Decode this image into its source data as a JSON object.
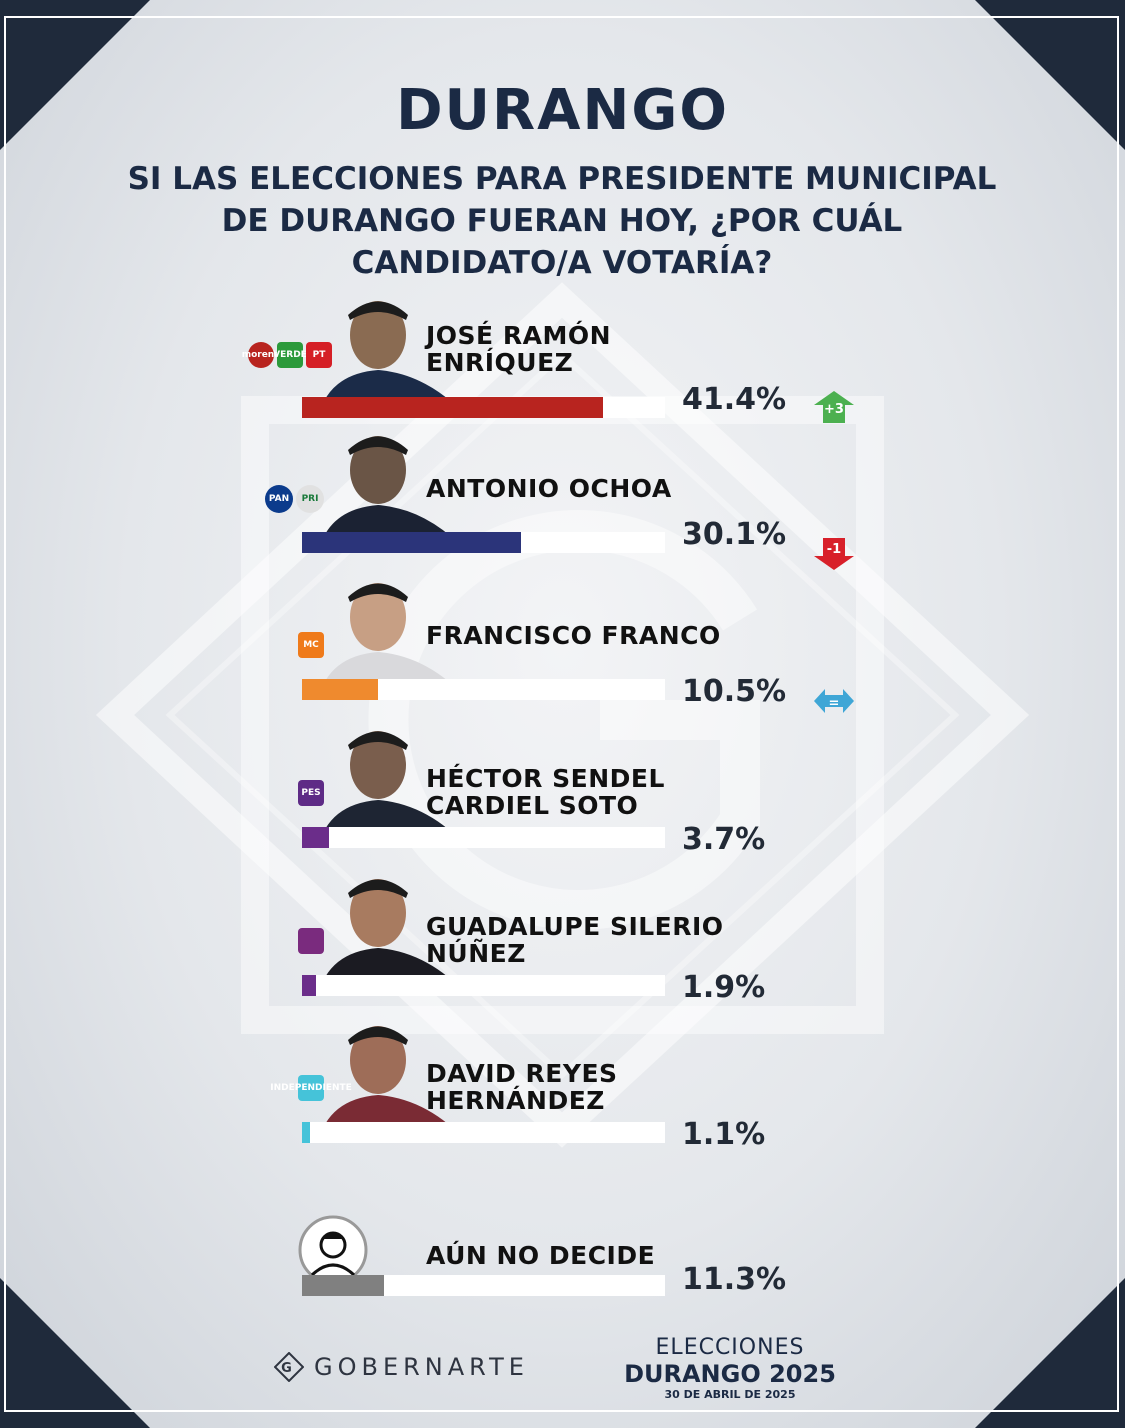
{
  "header": {
    "title": "DURANGO",
    "question": "SI LAS ELECCIONES PARA PRESIDENTE MUNICIPAL DE DURANGO FUERAN HOY, ¿POR CUÁL CANDIDATO/A VOTARÍA?"
  },
  "chart_data": {
    "type": "bar",
    "title": "DURANGO",
    "subtitle": "SI LAS ELECCIONES PARA PRESIDENTE MUNICIPAL DE DURANGO FUERAN HOY, ¿POR CUÁL CANDIDATO/A VOTARÍA?",
    "orientation": "horizontal",
    "xlim": [
      0,
      100
    ],
    "categories": [
      "JOSÉ RAMÓN ENRÍQUEZ",
      "ANTONIO OCHOA",
      "FRANCISCO FRANCO",
      "HÉCTOR SENDEL CARDIEL SOTO",
      "GUADALUPE SILERIO NÚÑEZ",
      "DAVID REYES HERNÁNDEZ",
      "AÚN NO DECIDE"
    ],
    "values": [
      41.4,
      30.1,
      10.5,
      3.7,
      1.9,
      1.1,
      11.3
    ],
    "labels": [
      "41.4%",
      "30.1%",
      "10.5%",
      "3.7%",
      "1.9%",
      "1.1%",
      "11.3%"
    ],
    "colors": [
      "#b8241f",
      "#2b347a",
      "#ef8a2e",
      "#6b2d8a",
      "#6b2d8a",
      "#45c3d9",
      "#808080"
    ],
    "trends": [
      "+3",
      "-1",
      "=",
      "",
      "",
      "",
      ""
    ],
    "party_logos": [
      [
        "morena",
        "VERDE",
        "PT"
      ],
      [
        "PAN",
        "PRI"
      ],
      [
        "MC"
      ],
      [
        "PES"
      ],
      [
        ""
      ],
      [
        "INDEPENDIENTE"
      ],
      []
    ]
  },
  "theme": {
    "navy": "#1b2a44",
    "trend_up": "#4cb050",
    "trend_down": "#d8202a",
    "trend_equal": "#3fa6d6"
  },
  "footer": {
    "brand": "GOBERNARTE",
    "event_line1": "ELECCIONES",
    "event_line2": "DURANGO 2025",
    "date": "30 DE ABRIL DE 2025"
  }
}
